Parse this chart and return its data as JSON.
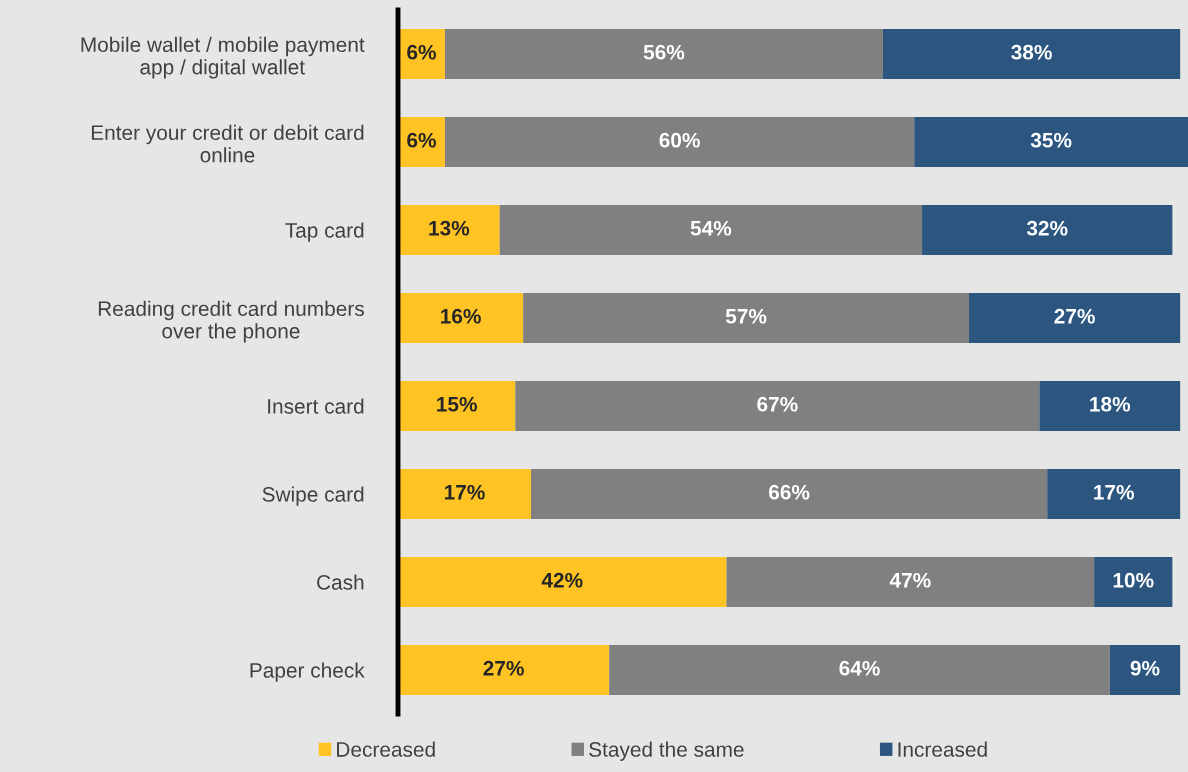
{
  "chart_data": {
    "type": "bar",
    "orientation": "horizontal",
    "stacked": true,
    "legend": "bottom",
    "grid": false,
    "tick_labels": "y",
    "categories": [
      "Mobile wallet / mobile payment\napp / digital wallet",
      "Enter your credit or debit card\nonline",
      "Tap card",
      "Reading credit card numbers\nover the phone",
      "Insert card",
      "Swipe card",
      "Cash",
      "Paper check"
    ],
    "series": [
      {
        "name": "Decreased",
        "color": "#ffc423",
        "values": [
          6,
          6,
          13,
          16,
          15,
          17,
          42,
          27
        ],
        "value_labels": [
          "6%",
          "6%",
          "13%",
          "16%",
          "15%",
          "17%",
          "42%",
          "27%"
        ]
      },
      {
        "name": "Stayed the same",
        "color": "#808080",
        "values": [
          56,
          60,
          54,
          57,
          67,
          66,
          47,
          64
        ],
        "value_labels": [
          "56%",
          "60%",
          "54%",
          "57%",
          "67%",
          "66%",
          "47%",
          "64%"
        ]
      },
      {
        "name": "Increased",
        "color": "#2c5680",
        "values": [
          38,
          35,
          32,
          27,
          18,
          17,
          10,
          9
        ],
        "value_labels": [
          "38%",
          "35%",
          "32%",
          "27%",
          "18%",
          "17%",
          "10%",
          "9%"
        ]
      }
    ]
  }
}
